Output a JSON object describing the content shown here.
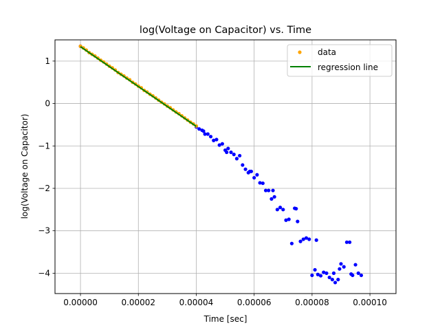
{
  "chart_data": {
    "type": "scatter",
    "title": "log(Voltage on Capacitor) vs. Time",
    "xlabel": "Time [sec]",
    "ylabel": "log(Voltage on Capacitor)",
    "xlim": [
      -8.8e-06,
      0.000109
    ],
    "ylim": [
      -4.48,
      1.5
    ],
    "x_ticks": [
      0.0,
      2e-05,
      4e-05,
      6e-05,
      8e-05,
      0.0001
    ],
    "x_tick_labels": [
      "0.00000",
      "0.00002",
      "0.00004",
      "0.00006",
      "0.00008",
      "0.00010"
    ],
    "y_ticks": [
      1,
      0,
      -1,
      -2,
      -3,
      -4
    ],
    "y_tick_labels": [
      "1",
      "0",
      "−1",
      "−2",
      "−3",
      "−4"
    ],
    "grid": true,
    "legend_position": "top-right",
    "colors": {
      "data": "#ffa500",
      "other_points": "#0000ff",
      "regression": "#008000",
      "grid": "#b0b0b0"
    },
    "series": [
      {
        "name": "data",
        "kind": "scatter",
        "x": [
          0.0,
          1e-06,
          2e-06,
          3e-06,
          4e-06,
          5e-06,
          6e-06,
          7e-06,
          8e-06,
          9e-06,
          1e-05,
          1.1e-05,
          1.2e-05,
          1.3e-05,
          1.4e-05,
          1.5e-05,
          1.6e-05,
          1.7e-05,
          1.8e-05,
          1.9e-05,
          2e-05,
          2.1e-05,
          2.2e-05,
          2.3e-05,
          2.4e-05,
          2.5e-05,
          2.6e-05,
          2.7e-05,
          2.8e-05,
          2.9e-05,
          3e-05,
          3.1e-05,
          3.2e-05,
          3.3e-05,
          3.4e-05,
          3.5e-05,
          3.6e-05,
          3.7e-05,
          3.8e-05,
          3.9e-05,
          4e-05
        ],
        "y": [
          1.35,
          1.31,
          1.26,
          1.2,
          1.16,
          1.12,
          1.07,
          1.02,
          0.98,
          0.93,
          0.88,
          0.84,
          0.79,
          0.73,
          0.69,
          0.65,
          0.6,
          0.56,
          0.5,
          0.46,
          0.41,
          0.37,
          0.31,
          0.27,
          0.22,
          0.18,
          0.13,
          0.08,
          0.03,
          -0.01,
          -0.06,
          -0.1,
          -0.15,
          -0.2,
          -0.24,
          -0.29,
          -0.34,
          -0.39,
          -0.44,
          -0.48,
          -0.53
        ]
      },
      {
        "name": "",
        "kind": "scatter",
        "x": [
          0.0,
          4e-05,
          4.1e-05,
          4.2e-05,
          4.3e-05,
          4.4e-05,
          4.5e-05,
          4.6e-05,
          4.7e-05,
          4.8e-05,
          4.9e-05,
          5e-05,
          5.1e-05,
          5.2e-05,
          5.3e-05,
          5.4e-05,
          5.5e-05,
          5.6e-05,
          5.7e-05,
          5.8e-05,
          5.9e-05,
          6e-05,
          6.1e-05,
          6.2e-05,
          6.3e-05,
          6.4e-05,
          6.5e-05,
          6.6e-05,
          6.7e-05,
          6.8e-05,
          6.9e-05,
          7e-05,
          7.1e-05,
          7.2e-05,
          7.3e-05,
          7.4e-05,
          7.5e-05,
          7.6e-05,
          7.7e-05,
          7.8e-05,
          7.9e-05,
          8e-05,
          8.1e-05,
          8.2e-05,
          8.3e-05,
          8.4e-05,
          8.5e-05,
          8.6e-05,
          8.7e-05,
          8.8e-05,
          8.9e-05,
          9e-05,
          9.1e-05,
          9.2e-05,
          9.3e-05,
          9.4e-05,
          9.5e-05,
          9.6e-05,
          9.7e-05,
          4.25e-05,
          5.05e-05,
          5.85e-05,
          6.65e-05,
          7.45e-05,
          8.15e-05,
          8.75e-05,
          8.95e-05,
          9.35e-05
        ],
        "y": [
          1.35,
          -0.55,
          -0.6,
          -0.63,
          -0.72,
          -0.72,
          -0.78,
          -0.87,
          -0.85,
          -0.98,
          -0.95,
          -1.1,
          -1.06,
          -1.15,
          -1.2,
          -1.3,
          -1.23,
          -1.45,
          -1.55,
          -1.63,
          -1.6,
          -1.75,
          -1.68,
          -1.87,
          -1.88,
          -2.05,
          -2.05,
          -2.25,
          -2.2,
          -2.5,
          -2.45,
          -2.5,
          -2.75,
          -2.73,
          -3.3,
          -2.47,
          -2.78,
          -3.25,
          -3.2,
          -3.17,
          -3.2,
          -4.05,
          -3.92,
          -4.03,
          -4.06,
          -3.98,
          -4.0,
          -4.1,
          -4.15,
          -4.22,
          -4.15,
          -3.78,
          -3.85,
          -3.27,
          -3.27,
          -4.05,
          -3.8,
          -4.0,
          -4.05,
          -0.65,
          -1.15,
          -1.6,
          -2.05,
          -2.48,
          -3.22,
          -4.0,
          -3.9,
          -4.02
        ]
      },
      {
        "name": "regression line",
        "kind": "line",
        "x": [
          0.0,
          4e-05
        ],
        "y": [
          1.34,
          -0.54
        ]
      }
    ]
  }
}
